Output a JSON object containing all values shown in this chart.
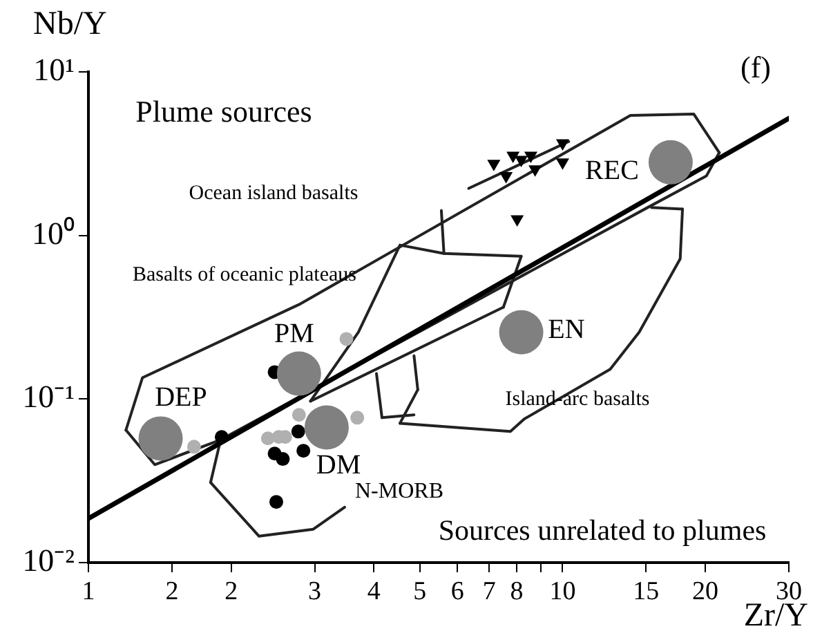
{
  "chart_data": {
    "type": "scatter",
    "xlabel": "Zr/Y",
    "ylabel": "Nb/Y",
    "log": "xy",
    "grid": false,
    "legend": false,
    "xlim": [
      1,
      30
    ],
    "ylim": [
      0.01,
      10
    ],
    "xticks": [
      1,
      {
        "value": 1.5,
        "label": "2"
      },
      2,
      3,
      4,
      5,
      6,
      7,
      8,
      {
        "value": 9,
        "label": null
      },
      10,
      15,
      20,
      30
    ],
    "yticks": [
      {
        "value": 0.01,
        "label": "10⁻²"
      },
      {
        "value": 0.1,
        "label": "10⁻¹"
      },
      {
        "value": 1,
        "label": "10⁰"
      },
      {
        "value": 10,
        "label": "10¹"
      }
    ],
    "series": [
      {
        "type": "bubble",
        "color": "#808080",
        "x": [
          1.42,
          2.78,
          3.18,
          8.18,
          16.9
        ],
        "values": [
          0.0574,
          0.143,
          0.067,
          0.256,
          2.8
        ],
        "sizes": [
          1,
          1,
          1,
          1,
          1
        ]
      },
      {
        "type": "scatter",
        "marker": "circle",
        "color": "#000000",
        "x": [
          2.47,
          1.91,
          2.77,
          2.47,
          2.57,
          2.84,
          2.49
        ],
        "values": [
          0.146,
          0.0586,
          0.0633,
          0.0464,
          0.043,
          0.0483,
          0.0235
        ]
      },
      {
        "type": "scatter",
        "marker": "circle",
        "color": "#b0b0b0",
        "x": [
          3.5,
          2.78,
          3.69,
          2.39,
          2.52,
          2.6,
          1.67
        ],
        "values": [
          0.233,
          0.08,
          0.0769,
          0.0575,
          0.0586,
          0.0586,
          0.0511
        ]
      },
      {
        "type": "scatter",
        "marker": "triangle",
        "color": "#000000",
        "x": [
          7.16,
          7.6,
          7.86,
          8.18,
          8.57,
          8.75,
          10.0,
          10.0,
          8.02
        ],
        "values": [
          2.75,
          2.31,
          3.08,
          2.91,
          3.08,
          2.54,
          2.8,
          3.67,
          1.26
        ]
      },
      {
        "type": "line",
        "color": "#000000",
        "x": [
          1,
          30
        ],
        "values": [
          0.0186,
          5.2
        ]
      },
      {
        "type": "line",
        "color": "#222222",
        "x": [
          6.34,
          10.3
        ],
        "values": [
          1.94,
          3.75
        ]
      },
      {
        "type": "line",
        "color": "#222222",
        "x": [
          1.2,
          1.3,
          2.78,
          13.9,
          18.9,
          21.4
        ],
        "values": [
          0.0646,
          0.135,
          0.378,
          5.42,
          5.53,
          3.21
        ]
      },
      {
        "type": "line",
        "color": "#222222",
        "x": [
          1.2,
          1.38,
          1.9,
          15.1,
          20.1,
          21.4
        ],
        "values": [
          0.0646,
          0.0397,
          0.0563,
          1.48,
          2.31,
          3.21
        ]
      },
      {
        "type": "line",
        "color": "#222222",
        "x": [
          5.55,
          5.62,
          8.18
        ],
        "values": [
          1.42,
          0.776,
          0.746
        ]
      },
      {
        "type": "line",
        "color": "#222222",
        "x": [
          7.5,
          8.18
        ],
        "values": [
          0.364,
          0.746
        ]
      },
      {
        "type": "line",
        "color": "#222222",
        "x": [
          2.94,
          7.5
        ],
        "values": [
          0.097,
          0.364
        ]
      },
      {
        "type": "line",
        "color": "#222222",
        "x": [
          2.94,
          3.71,
          4.54,
          5.62
        ],
        "values": [
          0.097,
          0.256,
          0.873,
          0.776
        ]
      },
      {
        "type": "line",
        "color": "#222222",
        "x": [
          15.4,
          17.9
        ],
        "values": [
          1.48,
          1.45
        ]
      },
      {
        "type": "line",
        "color": "#222222",
        "x": [
          4.54,
          7.76,
          8.3,
          12.6,
          14.5,
          17.7,
          17.9
        ],
        "values": [
          0.0711,
          0.0634,
          0.0755,
          0.152,
          0.256,
          0.719,
          1.45
        ]
      },
      {
        "type": "line",
        "color": "#222222",
        "x": [
          4.54,
          4.95
        ],
        "values": [
          0.0711,
          0.114
        ]
      },
      {
        "type": "line",
        "color": "#222222",
        "x": [
          4.86,
          4.95
        ],
        "values": [
          0.184,
          0.114
        ]
      },
      {
        "type": "line",
        "color": "#222222",
        "x": [
          1.81,
          1.9
        ],
        "values": [
          0.0309,
          0.0563
        ]
      },
      {
        "type": "line",
        "color": "#222222",
        "x": [
          1.81,
          2.29,
          2.98,
          3.47
        ],
        "values": [
          0.0309,
          0.0145,
          0.016,
          0.0218
        ]
      },
      {
        "type": "line",
        "color": "#222222",
        "x": [
          4.05,
          4.16
        ],
        "values": [
          0.143,
          0.0769
        ]
      },
      {
        "type": "line",
        "color": "#222222",
        "x": [
          4.16,
          4.86
        ],
        "values": [
          0.0769,
          0.08
        ]
      }
    ],
    "annotations": [
      "(f)",
      "Plume sources",
      "Ocean island basalts",
      "Basalts of oceanic plateaus",
      "PM",
      "DEP",
      "DM",
      "N-MORB",
      "EN",
      "REC",
      "Island-arc basalts",
      "Sources unrelated to plumes"
    ]
  }
}
